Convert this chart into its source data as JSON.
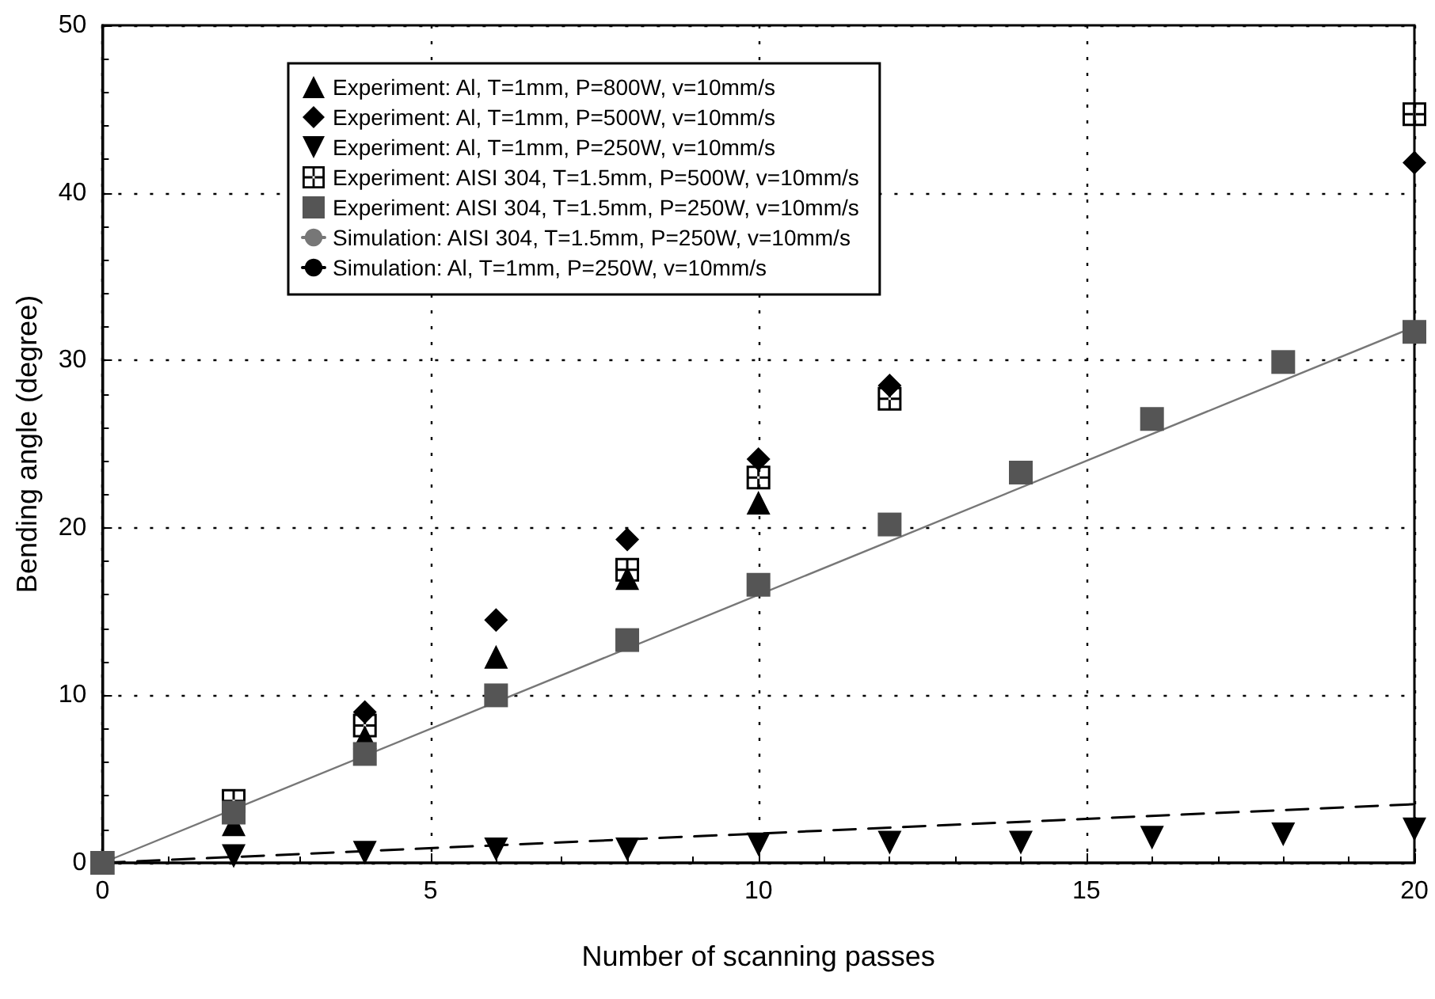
{
  "chart_data": {
    "type": "scatter",
    "xlabel": "Number of scanning passes",
    "ylabel": "Bending angle (degree)",
    "xlim": [
      0,
      20
    ],
    "ylim": [
      0,
      50
    ],
    "xticks": [
      0,
      5,
      10,
      15,
      20
    ],
    "yticks": [
      0,
      10,
      20,
      30,
      40,
      50
    ],
    "grid": true,
    "legend": "top left",
    "series": [
      {
        "name": "Experiment: Al, T=1mm, P=800W, v=10mm/s",
        "color": "#000000",
        "marker": "triangle",
        "x": [
          2,
          4,
          6,
          8,
          10
        ],
        "values": [
          2.3,
          7.5,
          12.3,
          17,
          21.5
        ]
      },
      {
        "name": "Experiment: Al, T=1mm, P=500W, v=10mm/s",
        "color": "#000000",
        "marker": "diamond",
        "x": [
          4,
          6,
          8,
          10,
          12,
          20
        ],
        "values": [
          9,
          14.5,
          19.3,
          24.1,
          28.5,
          41.8
        ]
      },
      {
        "name": "Experiment: Al, T=1mm, P=250W, v=10mm/s",
        "color": "#000000",
        "marker": "triangle_down",
        "x": [
          2,
          4,
          6,
          8,
          10,
          12,
          14,
          16,
          18,
          20
        ],
        "values": [
          0.4,
          0.6,
          0.8,
          0.8,
          1.1,
          1.2,
          1.2,
          1.5,
          1.7,
          2
        ]
      },
      {
        "name": "Experiment: AISI 304, T=1.5mm, P=500W, v=10mm/s",
        "color": "#000000",
        "marker": "cross",
        "x": [
          0,
          2,
          4,
          8,
          10,
          12,
          20
        ],
        "values": [
          0,
          3.7,
          8.2,
          17.5,
          23,
          27.7,
          44.7
        ]
      },
      {
        "name": "Experiment: AISI 304, T=1.5mm, P=250W, v=10mm/s",
        "color": "#555555",
        "marker": "square",
        "x": [
          0,
          2,
          4,
          6,
          8,
          10,
          12,
          14,
          16,
          18,
          20
        ],
        "values": [
          0,
          3,
          6.5,
          10,
          13.3,
          16.6,
          20.2,
          23.3,
          26.5,
          29.9,
          31.7
        ]
      },
      {
        "name": "Simulation: AISI 304, T=1.5mm, P=250W, v=10mm/s",
        "type": "line",
        "color": "#777777",
        "marker": "none",
        "line_style": "solid",
        "x": [
          0,
          20
        ],
        "values": [
          0,
          32
        ]
      },
      {
        "name": "Simulation: Al, T=1mm, P=250W, v=10mm/s",
        "type": "line",
        "color": "#000000",
        "marker": "none",
        "line_style": "dashed",
        "x": [
          0,
          20
        ],
        "values": [
          0,
          3.5
        ]
      }
    ]
  }
}
